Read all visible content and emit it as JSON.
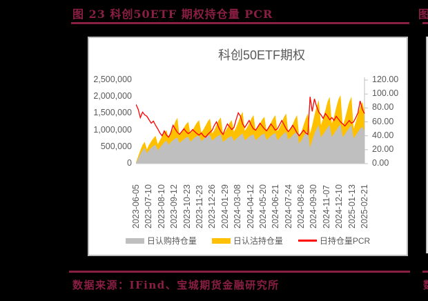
{
  "page": {
    "background": "#000000"
  },
  "report": {
    "figure_caption": "图 23 科创50ETF 期权持仓量 PCR",
    "data_source": "数据来源：IFind、宝城期货金融研究所",
    "accent_color": "#8A1E43"
  },
  "adjacent_column": {
    "caption_fragment": "图",
    "source_fragment": "数"
  },
  "chart_data": {
    "type": "area",
    "stacked": true,
    "title": "科创50ETF期权",
    "title_color": "#595959",
    "plot_border_color": "#bdbdbd",
    "axis_text_color": "#595959",
    "legend_position": "bottom",
    "x_ticks": [
      "2023-06-05",
      "2023-07-10",
      "2023-08-10",
      "2023-09-12",
      "2023-10-23",
      "2023-11-23",
      "2023-12-26",
      "2024-01-29",
      "2024-03-08",
      "2024-04-12",
      "2024-05-20",
      "2024-06-21",
      "2024-07-24",
      "2024-08-26",
      "2024-09-30",
      "2024-11-07",
      "2024-12-10",
      "2025-01-13",
      "2025-02-21"
    ],
    "left_axis": {
      "min": 0,
      "max": 2500000,
      "ticks": [
        {
          "label": "2,500,000",
          "value": 2500000
        },
        {
          "label": "2,000,000",
          "value": 2000000
        },
        {
          "label": "1,500,000",
          "value": 1500000
        },
        {
          "label": "1,000,000",
          "value": 1000000
        },
        {
          "label": "500,000",
          "value": 500000
        },
        {
          "label": "0",
          "value": 0
        }
      ]
    },
    "right_axis": {
      "min": 0,
      "max": 120,
      "ticks": [
        {
          "label": "120.00",
          "value": 120
        },
        {
          "label": "100.00",
          "value": 100
        },
        {
          "label": "80.00",
          "value": 80
        },
        {
          "label": "60.00",
          "value": 60
        },
        {
          "label": "40.00",
          "value": 40
        },
        {
          "label": "20.00",
          "value": 20
        },
        {
          "label": "0.00",
          "value": 0
        }
      ]
    },
    "series": [
      {
        "name": "日认购持仓量",
        "type": "area",
        "color": "#BFBFBF",
        "axis": "left",
        "values": [
          20000,
          150000,
          280000,
          400000,
          470000,
          310000,
          400000,
          470000,
          530000,
          560000,
          400000,
          480000,
          560000,
          640000,
          690000,
          560000,
          640000,
          700000,
          750000,
          780000,
          620000,
          680000,
          730000,
          780000,
          800000,
          660000,
          720000,
          780000,
          820000,
          840000,
          680000,
          730000,
          790000,
          830000,
          860000,
          690000,
          740000,
          800000,
          840000,
          870000,
          650000,
          700000,
          760000,
          800000,
          820000,
          680000,
          740000,
          800000,
          860000,
          900000,
          700000,
          750000,
          810000,
          850000,
          880000,
          700000,
          760000,
          820000,
          870000,
          900000,
          710000,
          770000,
          830000,
          880000,
          920000,
          700000,
          770000,
          840000,
          900000,
          950000,
          720000,
          780000,
          850000,
          910000,
          950000,
          600000,
          700000,
          820000,
          920000,
          980000,
          480000,
          700000,
          900000,
          1050000,
          1150000,
          780000,
          880000,
          980000,
          1080000,
          1150000,
          800000,
          900000,
          1000000,
          1100000,
          1180000,
          790000,
          880000,
          980000,
          1070000,
          1150000,
          760000,
          850000,
          950000,
          1050000,
          1100000,
          960000
        ]
      },
      {
        "name": "日认沽持仓量",
        "type": "area",
        "color": "#FFC000",
        "axis": "left",
        "stacked_on": "日认购持仓量",
        "values": [
          20000,
          70000,
          120000,
          160000,
          180000,
          120000,
          160000,
          200000,
          230000,
          270000,
          180000,
          220000,
          260000,
          290000,
          310000,
          200000,
          260000,
          350000,
          500000,
          590000,
          230000,
          270000,
          350000,
          400000,
          450000,
          240000,
          280000,
          340000,
          410000,
          460000,
          250000,
          290000,
          350000,
          430000,
          490000,
          210000,
          260000,
          350000,
          460000,
          510000,
          230000,
          260000,
          320000,
          420000,
          480000,
          270000,
          340000,
          450000,
          570000,
          650000,
          280000,
          330000,
          390000,
          500000,
          570000,
          280000,
          310000,
          380000,
          450000,
          500000,
          280000,
          320000,
          390000,
          470000,
          530000,
          270000,
          310000,
          390000,
          500000,
          550000,
          210000,
          260000,
          330000,
          420000,
          500000,
          220000,
          250000,
          330000,
          430000,
          520000,
          420000,
          450000,
          550000,
          650000,
          750000,
          370000,
          470000,
          620000,
          770000,
          850000,
          400000,
          500000,
          680000,
          820000,
          870000,
          340000,
          450000,
          620000,
          780000,
          850000,
          290000,
          400000,
          530000,
          650000,
          750000,
          610000
        ]
      },
      {
        "name": "日持仓量PCR",
        "type": "line",
        "color": "#FF0000",
        "axis": "right",
        "values": [
          85,
          78,
          66,
          74,
          70,
          68,
          63,
          58,
          61,
          55,
          50,
          44,
          40,
          47,
          41,
          38,
          44,
          55,
          50,
          45,
          42,
          46,
          50,
          46,
          43,
          45,
          49,
          46,
          43,
          41,
          44,
          40,
          38,
          42,
          45,
          48,
          55,
          60,
          52,
          46,
          42,
          50,
          57,
          53,
          49,
          52,
          63,
          73,
          68,
          57,
          52,
          57,
          62,
          55,
          50,
          48,
          53,
          58,
          54,
          50,
          47,
          52,
          57,
          53,
          48,
          50,
          56,
          62,
          56,
          50,
          46,
          50,
          55,
          50,
          44,
          40,
          44,
          48,
          44,
          42,
          96,
          75,
          93,
          82,
          74,
          70,
          65,
          72,
          68,
          63,
          66,
          62,
          68,
          64,
          60,
          57,
          54,
          58,
          62,
          58,
          60,
          66,
          73,
          90,
          78,
          72
        ]
      }
    ]
  }
}
